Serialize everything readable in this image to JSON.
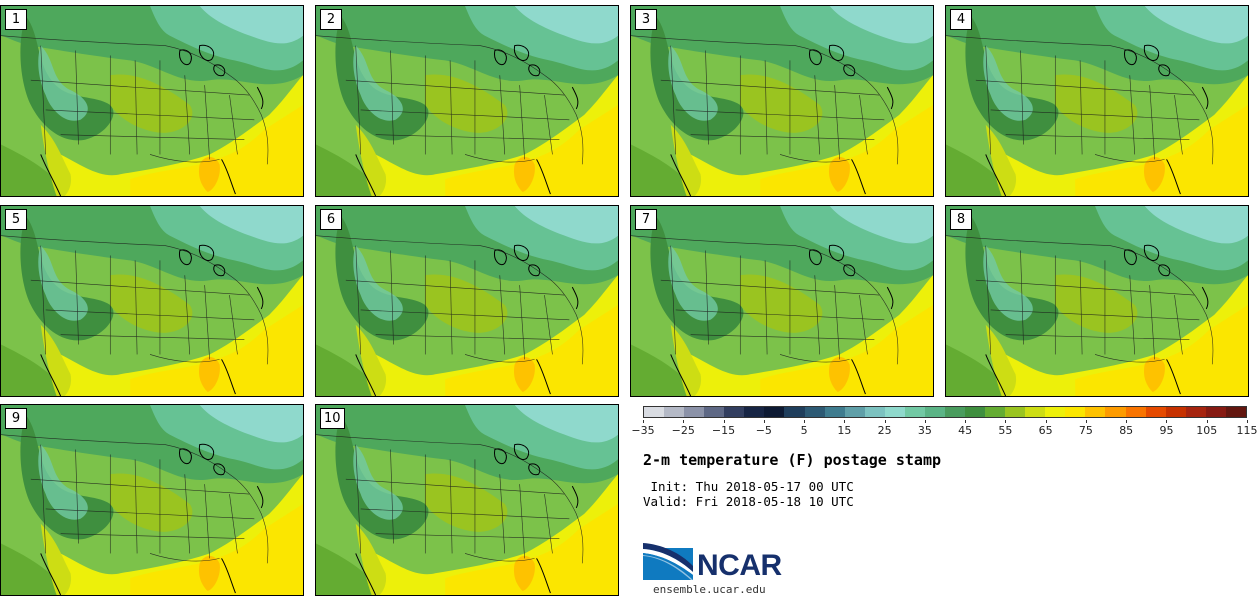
{
  "panels": [
    {
      "label": "1"
    },
    {
      "label": "2"
    },
    {
      "label": "3"
    },
    {
      "label": "4"
    },
    {
      "label": "5"
    },
    {
      "label": "6"
    },
    {
      "label": "7"
    },
    {
      "label": "8"
    },
    {
      "label": "9"
    },
    {
      "label": "10"
    }
  ],
  "colorbar": {
    "colors": [
      "#d9dce2",
      "#b4b9c6",
      "#8b92a8",
      "#5e6885",
      "#323e5f",
      "#172544",
      "#0d1a33",
      "#1f3e5c",
      "#2d5a74",
      "#3f7c8f",
      "#5f9fa8",
      "#7cc2c0",
      "#8fd9cc",
      "#72c9a4",
      "#5bb486",
      "#4a9c5e",
      "#3f8f3f",
      "#64ac32",
      "#9ac420",
      "#cddd14",
      "#edf00a",
      "#fbe600",
      "#fec200",
      "#fd9b00",
      "#f97400",
      "#e54a00",
      "#c63100",
      "#a6240f",
      "#861a12",
      "#62160f"
    ],
    "ticks": [
      "−35",
      "−25",
      "−15",
      "−5",
      "5",
      "15",
      "25",
      "35",
      "45",
      "55",
      "65",
      "75",
      "85",
      "95",
      "105",
      "115"
    ]
  },
  "title": "2-m temperature (F) postage stamp",
  "init_line": " Init: Thu 2018-05-17 00 UTC",
  "valid_line": "Valid: Fri 2018-05-18 10 UTC",
  "logo": {
    "text": "NCAR",
    "url": "ensemble.ucar.edu"
  }
}
